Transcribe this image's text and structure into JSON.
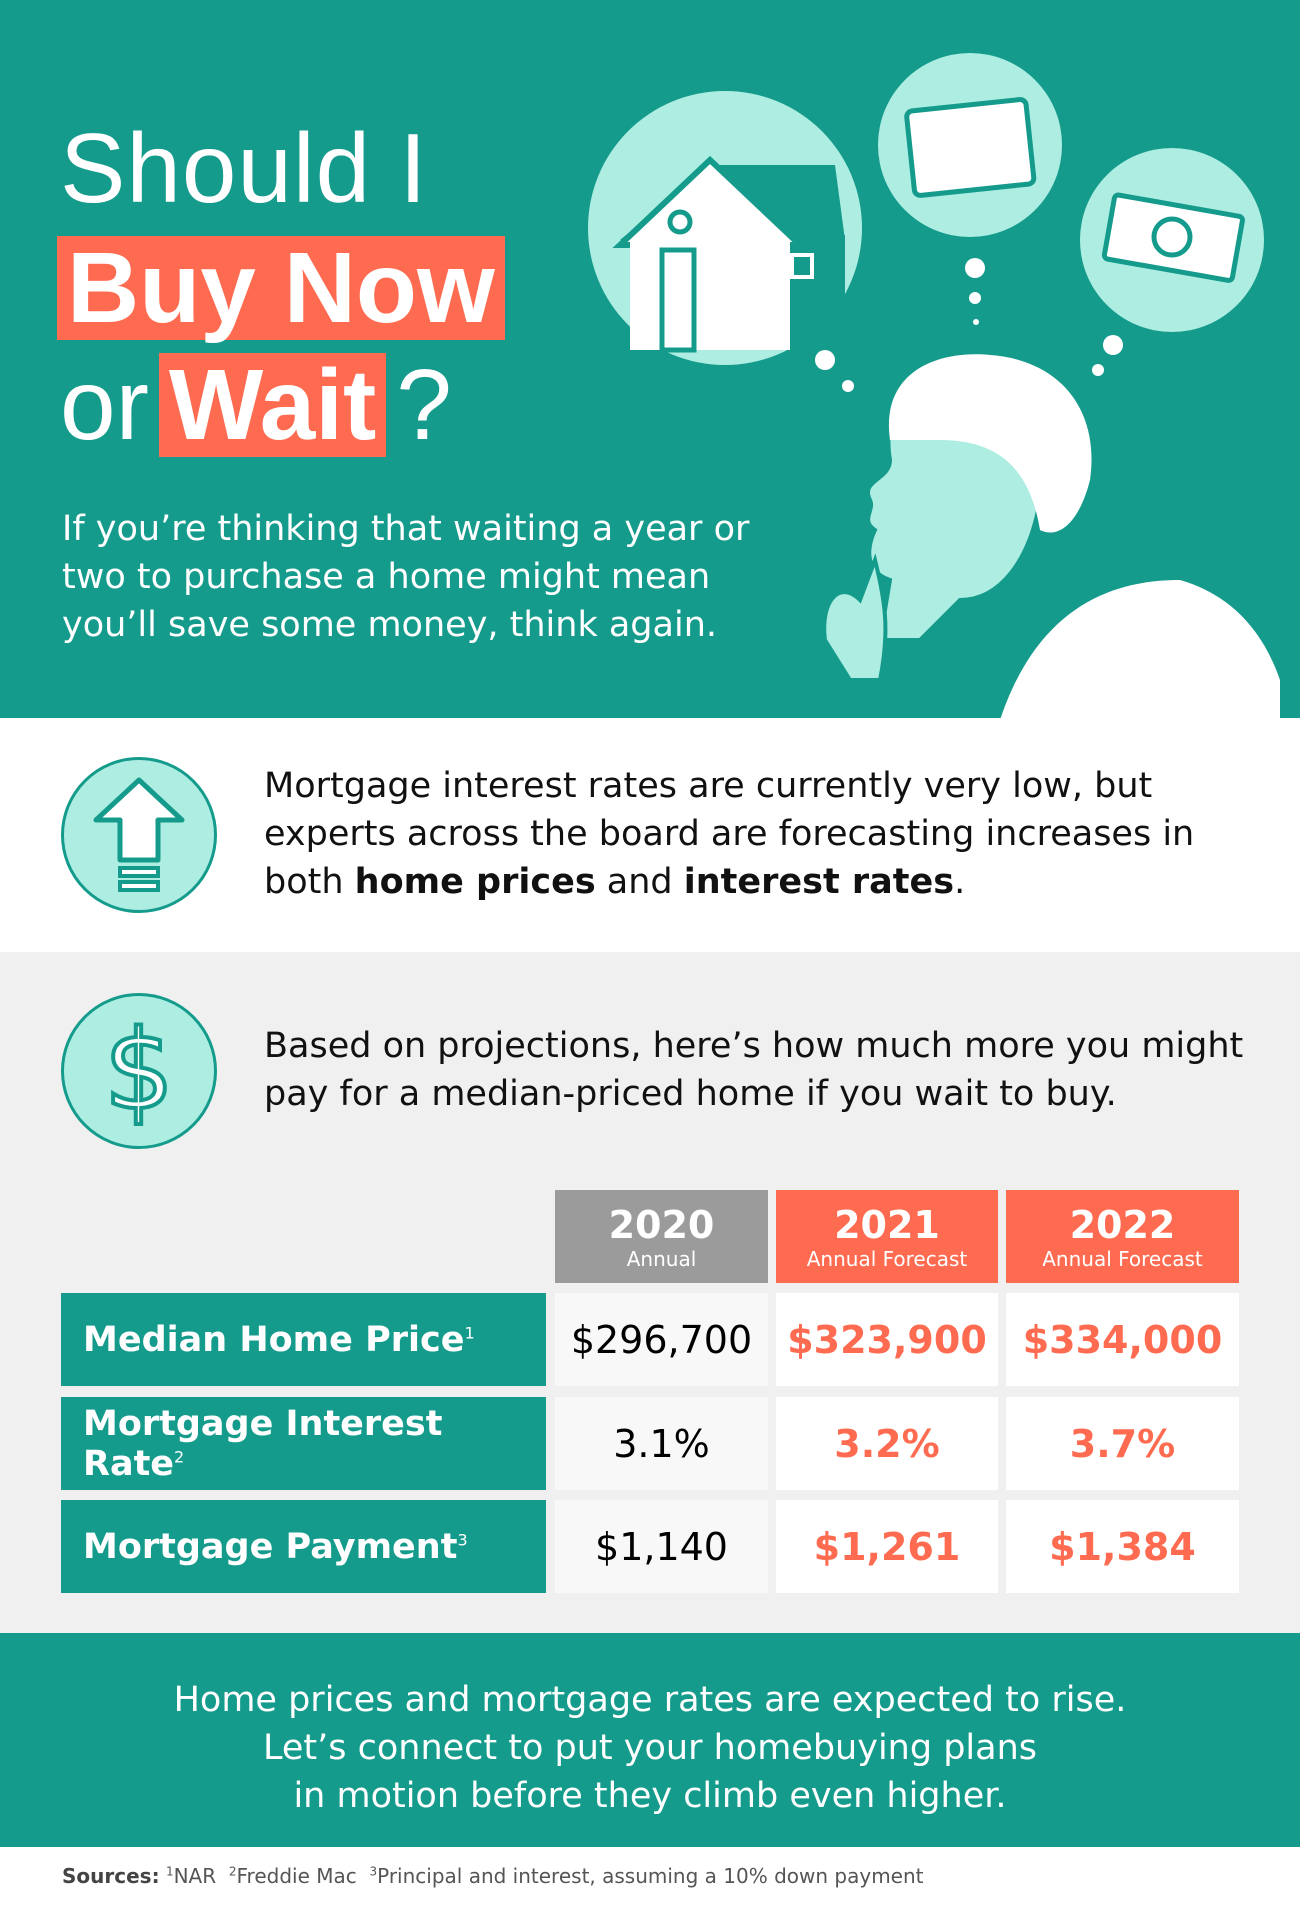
{
  "hero": {
    "title_line1": "Should I",
    "title_highlight1": "Buy Now",
    "title_or": "or",
    "title_highlight2": "Wait",
    "title_q": "?",
    "intro": "If you’re thinking that waiting a year or two to purchase a home might mean you’ll save some money, think again."
  },
  "section1": {
    "icon": "up-arrow-icon",
    "text_before": "Mortgage interest rates are currently very low, but experts across the board are forecasting increases in both ",
    "bold1": "home prices",
    "mid": " and ",
    "bold2": "interest rates",
    "end": "."
  },
  "section2": {
    "icon": "dollar-icon",
    "text": "Based on projections, here’s how much more you might pay for a median-priced home if you wait to buy."
  },
  "table": {
    "columns": [
      {
        "year": "2020",
        "sub": "Annual"
      },
      {
        "year": "2021",
        "sub": "Annual Forecast"
      },
      {
        "year": "2022",
        "sub": "Annual Forecast"
      }
    ],
    "rows": [
      {
        "label": "Median Home Price",
        "sup": "1",
        "values": [
          "$296,700",
          "$323,900",
          "$334,000"
        ]
      },
      {
        "label": "Mortgage Interest Rate",
        "sup": "2",
        "values": [
          "3.1%",
          "3.2%",
          "3.7%"
        ]
      },
      {
        "label": "Mortgage Payment",
        "sup": "3",
        "values": [
          "$1,140",
          "$1,261",
          "$1,384"
        ]
      }
    ]
  },
  "cta": {
    "line1": "Home prices and mortgage rates are expected to rise.",
    "line2": "Let’s connect to put your homebuying plans",
    "line3": "in motion before they climb even higher."
  },
  "sources": {
    "label": "Sources:",
    "s1": "NAR",
    "s2": "Freddie Mac",
    "s3": "Principal and interest, assuming a 10% down payment",
    "n1": "1",
    "n2": "2",
    "n3": "3"
  },
  "colors": {
    "teal": "#159b8c",
    "mint": "#aeeee2",
    "coral": "#ff6b50",
    "gray": "#9b9b9b"
  }
}
